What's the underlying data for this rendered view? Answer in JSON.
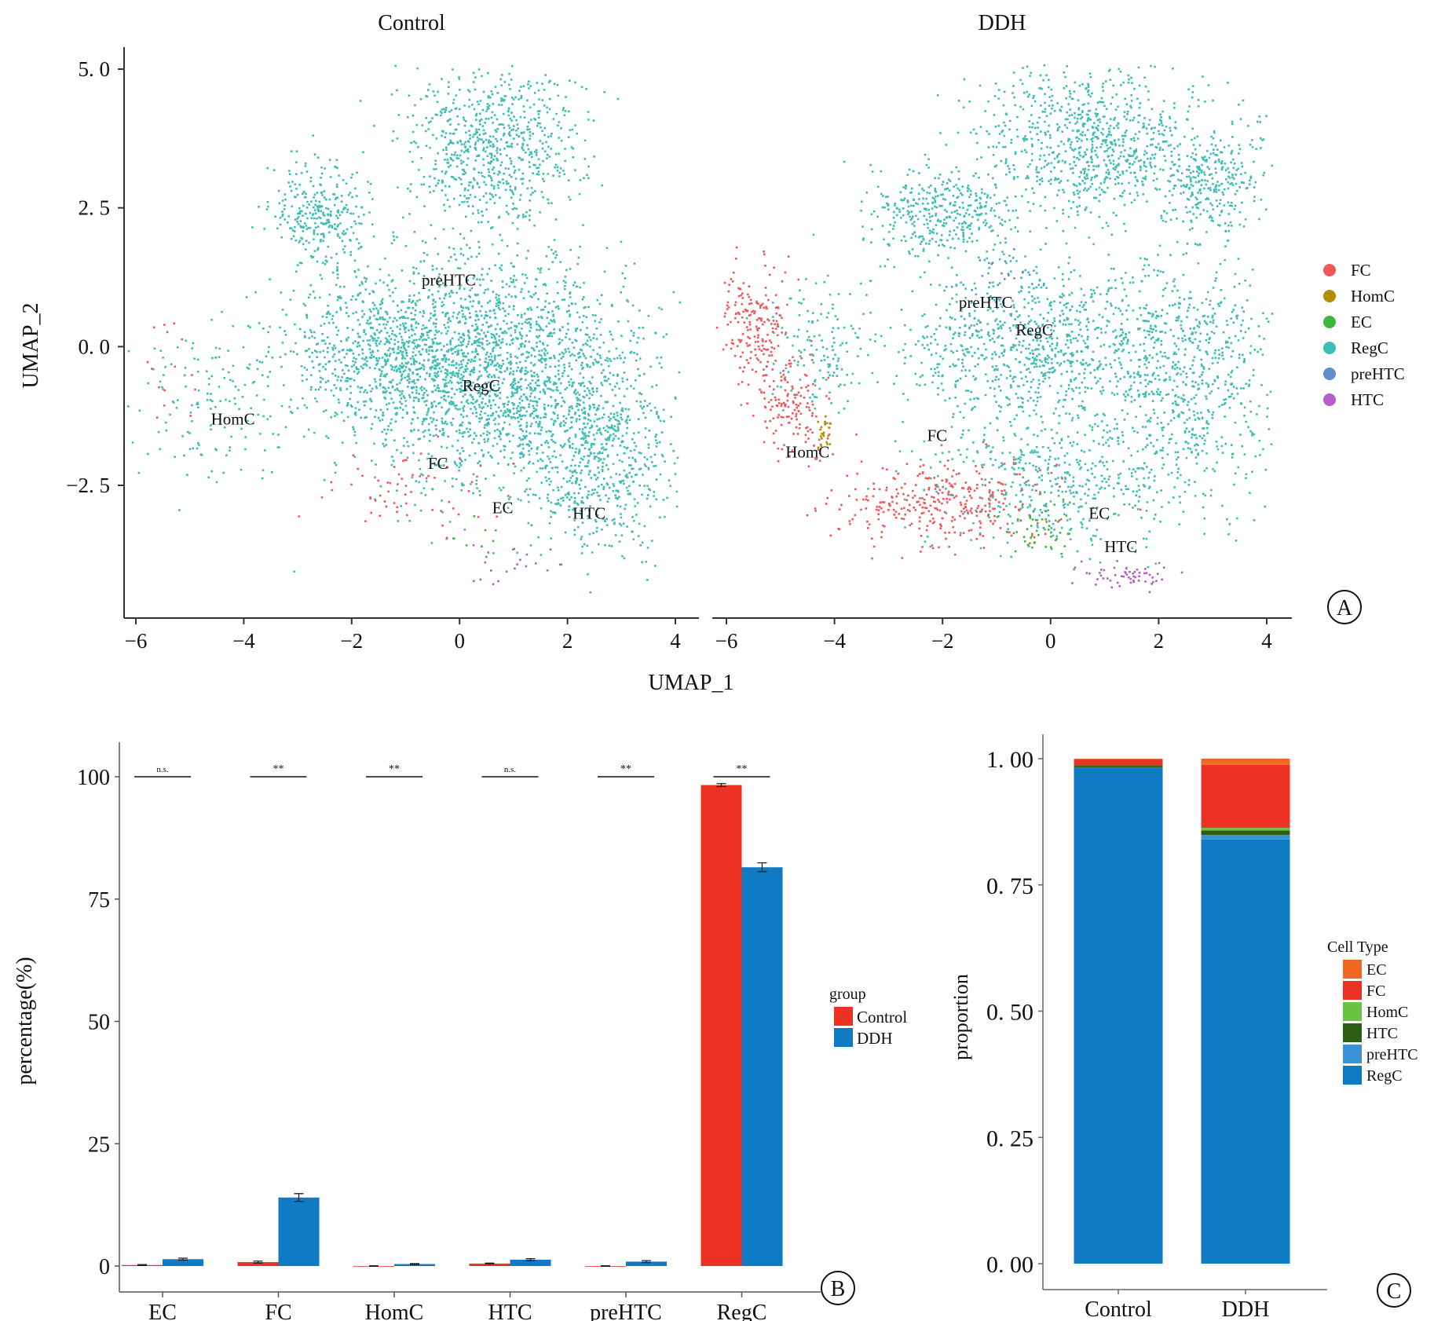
{
  "chart_data": [
    {
      "panel": "A",
      "type": "scatter",
      "xlabel": "UMAP_1",
      "ylabel": "UMAP_2",
      "xticks": [
        -6,
        -4,
        -2,
        0,
        2,
        4
      ],
      "yticks": [
        5.0,
        2.5,
        0.0,
        -2.5
      ],
      "ytick_labels": [
        "5. 0",
        "2. 5",
        "0. 0",
        "−2. 5"
      ],
      "xlim": [
        -6.4,
        5.0
      ],
      "ylim": [
        -4.9,
        5.3
      ],
      "legend": [
        {
          "name": "FC",
          "color": "#f0575a"
        },
        {
          "name": "HomC",
          "color": "#b38f00"
        },
        {
          "name": "EC",
          "color": "#3cb83c"
        },
        {
          "name": "RegC",
          "color": "#3dbdb5"
        },
        {
          "name": "preHTC",
          "color": "#5e8fd0"
        },
        {
          "name": "HTC",
          "color": "#b45ec8"
        }
      ],
      "facets": [
        {
          "title": "Control",
          "labels": [
            {
              "text": "preHTC",
              "x": -0.2,
              "y": 1.1
            },
            {
              "text": "RegC",
              "x": 0.4,
              "y": -0.8
            },
            {
              "text": "HomC",
              "x": -4.2,
              "y": -1.4
            },
            {
              "text": "FC",
              "x": -0.4,
              "y": -2.2
            },
            {
              "text": "EC",
              "x": 0.8,
              "y": -3.0
            },
            {
              "text": "HTC",
              "x": 2.4,
              "y": -3.1
            }
          ],
          "clusters": [
            {
              "type": "RegC",
              "cx": 0.6,
              "cy": -0.4,
              "sx": 1.7,
              "sy": 1.3,
              "weight": 40
            },
            {
              "type": "RegC",
              "cx": 0.5,
              "cy": 3.6,
              "sx": 1.0,
              "sy": 0.9,
              "weight": 14
            },
            {
              "type": "RegC",
              "cx": -2.6,
              "cy": 2.4,
              "sx": 0.5,
              "sy": 0.6,
              "weight": 6
            },
            {
              "type": "RegC",
              "cx": -1.5,
              "cy": 0.0,
              "sx": 1.2,
              "sy": 0.8,
              "weight": 12
            },
            {
              "type": "RegC",
              "cx": 2.6,
              "cy": -2.0,
              "sx": 0.9,
              "sy": 1.1,
              "weight": 12
            },
            {
              "type": "RegC",
              "cx": -4.5,
              "cy": -1.0,
              "sx": 0.9,
              "sy": 0.9,
              "weight": 3
            },
            {
              "type": "FC",
              "cx": -1.0,
              "cy": -2.6,
              "sx": 1.0,
              "sy": 0.5,
              "weight": 1.2
            },
            {
              "type": "FC",
              "cx": -5.5,
              "cy": -0.2,
              "sx": 0.4,
              "sy": 0.5,
              "weight": 0.3
            },
            {
              "type": "EC",
              "cx": 0.5,
              "cy": -3.5,
              "sx": 0.4,
              "sy": 0.3,
              "weight": 0.2
            },
            {
              "type": "HTC",
              "cx": 1.0,
              "cy": -4.0,
              "sx": 0.5,
              "sy": 0.2,
              "weight": 0.4
            }
          ]
        },
        {
          "title": "DDH",
          "labels": [
            {
              "text": "preHTC",
              "x": -1.2,
              "y": 0.7
            },
            {
              "text": "RegC",
              "x": -0.3,
              "y": 0.2
            },
            {
              "text": "FC",
              "x": -2.1,
              "y": -1.7
            },
            {
              "text": "HomC",
              "x": -4.5,
              "y": -2.0
            },
            {
              "text": "EC",
              "x": 0.9,
              "y": -3.1
            },
            {
              "text": "HTC",
              "x": 1.3,
              "y": -3.7
            }
          ],
          "clusters": [
            {
              "type": "RegC",
              "cx": 0.8,
              "cy": 3.7,
              "sx": 1.3,
              "sy": 0.8,
              "weight": 18
            },
            {
              "type": "RegC",
              "cx": 3.0,
              "cy": 3.0,
              "sx": 0.6,
              "sy": 0.6,
              "weight": 6
            },
            {
              "type": "RegC",
              "cx": -2.0,
              "cy": 2.4,
              "sx": 0.9,
              "sy": 0.5,
              "weight": 8
            },
            {
              "type": "RegC",
              "cx": -0.5,
              "cy": 0.0,
              "sx": 1.6,
              "sy": 1.0,
              "weight": 20
            },
            {
              "type": "RegC",
              "cx": 2.5,
              "cy": -0.5,
              "sx": 1.0,
              "sy": 1.3,
              "weight": 14
            },
            {
              "type": "RegC",
              "cx": 0.3,
              "cy": -2.5,
              "sx": 1.5,
              "sy": 0.7,
              "weight": 10
            },
            {
              "type": "RegC",
              "cx": -4.3,
              "cy": 0.0,
              "sx": 0.6,
              "sy": 0.8,
              "weight": 3
            },
            {
              "type": "FC",
              "cx": -5.5,
              "cy": 0.4,
              "sx": 0.4,
              "sy": 0.7,
              "weight": 4
            },
            {
              "type": "FC",
              "cx": -4.8,
              "cy": -1.0,
              "sx": 0.4,
              "sy": 0.6,
              "weight": 3
            },
            {
              "type": "FC",
              "cx": -2.0,
              "cy": -2.8,
              "sx": 1.2,
              "sy": 0.5,
              "weight": 7
            },
            {
              "type": "HomC",
              "cx": -4.2,
              "cy": -1.5,
              "sx": 0.12,
              "sy": 0.25,
              "weight": 0.5
            },
            {
              "type": "EC",
              "cx": -0.2,
              "cy": -3.3,
              "sx": 0.4,
              "sy": 0.3,
              "weight": 1
            },
            {
              "type": "preHTC",
              "cx": -1.0,
              "cy": 1.3,
              "sx": 0.5,
              "sy": 0.3,
              "weight": 0.5
            },
            {
              "type": "HTC",
              "cx": 1.4,
              "cy": -4.1,
              "sx": 0.6,
              "sy": 0.15,
              "weight": 1.2
            }
          ]
        }
      ]
    },
    {
      "panel": "B",
      "type": "bar",
      "ylabel": "percentage(%)",
      "ylim": [
        0,
        105
      ],
      "yticks": [
        0,
        25,
        50,
        75,
        100
      ],
      "categories": [
        "EC",
        "FC",
        "HomC",
        "HTC",
        "preHTC",
        "RegC"
      ],
      "legend_title": "group",
      "series": [
        {
          "name": "Control",
          "color": "#ec3323",
          "values": [
            0.2,
            0.8,
            0.0,
            0.5,
            0.0,
            98.3
          ],
          "errors": [
            0.1,
            0.2,
            0.05,
            0.1,
            0.05,
            0.3
          ]
        },
        {
          "name": "DDH",
          "color": "#0e7bc4",
          "values": [
            1.4,
            14.0,
            0.4,
            1.3,
            0.9,
            81.5
          ],
          "errors": [
            0.2,
            0.8,
            0.1,
            0.2,
            0.2,
            0.9
          ]
        }
      ],
      "significance": [
        "n.s.",
        "**",
        "**",
        "n.s.",
        "**",
        "**"
      ]
    },
    {
      "panel": "C",
      "type": "bar",
      "stacked": true,
      "ylabel": "proportion",
      "ylim": [
        0,
        1.04
      ],
      "yticks": [
        0,
        0.25,
        0.5,
        0.75,
        1.0
      ],
      "ytick_labels": [
        "0. 00",
        "0. 25",
        "0. 50",
        "0. 75",
        "1. 00"
      ],
      "categories": [
        "Control",
        "DDH"
      ],
      "legend_title": "Cell Type",
      "series": [
        {
          "name": "EC",
          "color": "#f06623",
          "values": [
            0.001,
            0.012
          ]
        },
        {
          "name": "FC",
          "color": "#ec3323",
          "values": [
            0.012,
            0.125
          ]
        },
        {
          "name": "HomC",
          "color": "#69c443",
          "values": [
            0.0,
            0.005
          ]
        },
        {
          "name": "HTC",
          "color": "#2e5e16",
          "values": [
            0.004,
            0.009
          ]
        },
        {
          "name": "preHTC",
          "color": "#3a93d6",
          "values": [
            0.0,
            0.009
          ]
        },
        {
          "name": "RegC",
          "color": "#0e7bc4",
          "values": [
            0.983,
            0.84
          ]
        }
      ]
    }
  ],
  "panel_labels": [
    "A",
    "B",
    "C"
  ]
}
